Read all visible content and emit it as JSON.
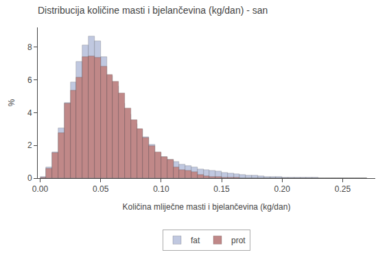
{
  "chart_data": {
    "type": "histogram",
    "title": "Distribucija količine masti i bjelančevina (kg/dan) - san",
    "xlabel": "Količina mliječne masti i bjelančevina (kg/dan)",
    "ylabel": "%",
    "bins": [
      0,
      0.005,
      0.01,
      0.015,
      0.02,
      0.025,
      0.03,
      0.035,
      0.04,
      0.045,
      0.05,
      0.055,
      0.06,
      0.065,
      0.07,
      0.075,
      0.08,
      0.085,
      0.09,
      0.095,
      0.1,
      0.105,
      0.11,
      0.115,
      0.12,
      0.125,
      0.13,
      0.135,
      0.14,
      0.145,
      0.15,
      0.155,
      0.16,
      0.165,
      0.17,
      0.175,
      0.18,
      0.185,
      0.19,
      0.195,
      0.2,
      0.205,
      0.21,
      0.215,
      0.22,
      0.225,
      0.23,
      0.235,
      0.24,
      0.245,
      0.25,
      0.255,
      0.26,
      0.265,
      0.27
    ],
    "series": [
      {
        "name": "fat",
        "color": "#c0c8e0",
        "values": [
          0.07,
          0.65,
          1.6,
          3.05,
          4.6,
          5.85,
          7.1,
          8.1,
          8.65,
          8.35,
          7.4,
          6.25,
          5.6,
          4.55,
          3.9,
          3.3,
          2.95,
          2.5,
          2.05,
          1.55,
          1.3,
          1.15,
          1.0,
          0.85,
          0.75,
          0.65,
          0.55,
          0.5,
          0.45,
          0.4,
          0.35,
          0.3,
          0.25,
          0.2,
          0.18,
          0.15,
          0.12,
          0.1,
          0.08,
          0.07,
          0.06,
          0.05,
          0.04,
          0.04,
          0.03,
          0.03,
          0.02,
          0.02,
          0.02,
          0.01,
          0.01,
          0.01,
          0.01,
          0.01
        ]
      },
      {
        "name": "prot",
        "color": "#c08888",
        "values": [
          0.05,
          0.6,
          1.55,
          2.75,
          4.55,
          5.35,
          6.15,
          7.4,
          7.45,
          7.35,
          6.8,
          6.3,
          5.9,
          5.2,
          4.25,
          3.55,
          3.0,
          2.45,
          1.98,
          1.58,
          1.28,
          1.12,
          0.65,
          0.52,
          0.45,
          0.38,
          0.2,
          0.14,
          0.1,
          0.07,
          0.05,
          0.04,
          0.03,
          0.02,
          0.01,
          0.01,
          0.01,
          0.0,
          0.0,
          0.0,
          0.0,
          0.0,
          0.0,
          0.0,
          0.0,
          0.0,
          0.0,
          0.0,
          0.0,
          0.0,
          0.0,
          0.0,
          0.0,
          0.0
        ]
      }
    ],
    "xlim": [
      -0.002,
      0.277
    ],
    "xticks": [
      {
        "value": 0.0,
        "label": "0.00"
      },
      {
        "value": 0.05,
        "label": "0.05"
      },
      {
        "value": 0.1,
        "label": "0.10"
      },
      {
        "value": 0.15,
        "label": "0.15"
      },
      {
        "value": 0.2,
        "label": "0.20"
      },
      {
        "value": 0.25,
        "label": "0.25"
      }
    ],
    "ylim": [
      0.0,
      9.2
    ],
    "yticks": [
      0,
      2,
      4,
      6,
      8
    ],
    "grid": false,
    "legend": "bottom"
  }
}
